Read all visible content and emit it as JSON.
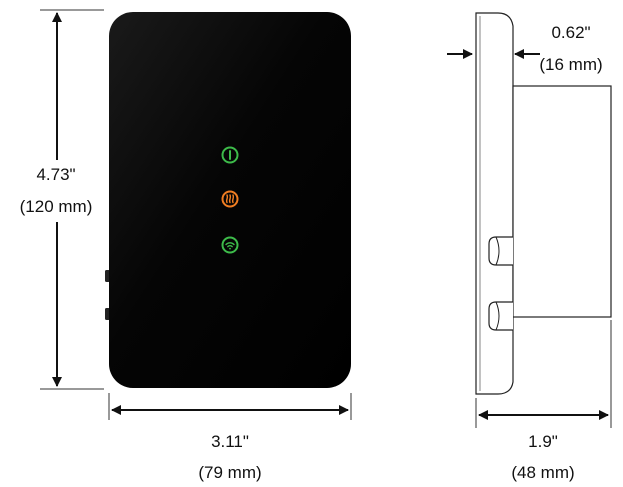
{
  "front_view": {
    "height_label": "4.73\"",
    "height_metric": "(120 mm)",
    "width_label": "3.11\"",
    "width_metric": "(79 mm)",
    "led_icons": [
      {
        "name": "power-icon",
        "color": "#3dbb4a"
      },
      {
        "name": "heating-icon",
        "color": "#f07d22"
      },
      {
        "name": "wifi-icon",
        "color": "#3dbb4a"
      }
    ]
  },
  "side_view": {
    "thickness_label": "0.62\"",
    "thickness_metric": "(16 mm)",
    "depth_label": "1.9\"",
    "depth_metric": "(48 mm)"
  },
  "colors": {
    "device_body": "#050505",
    "power_led": "#3dbb4a",
    "heat_led": "#f07d22",
    "wifi_led": "#3dbb4a"
  }
}
